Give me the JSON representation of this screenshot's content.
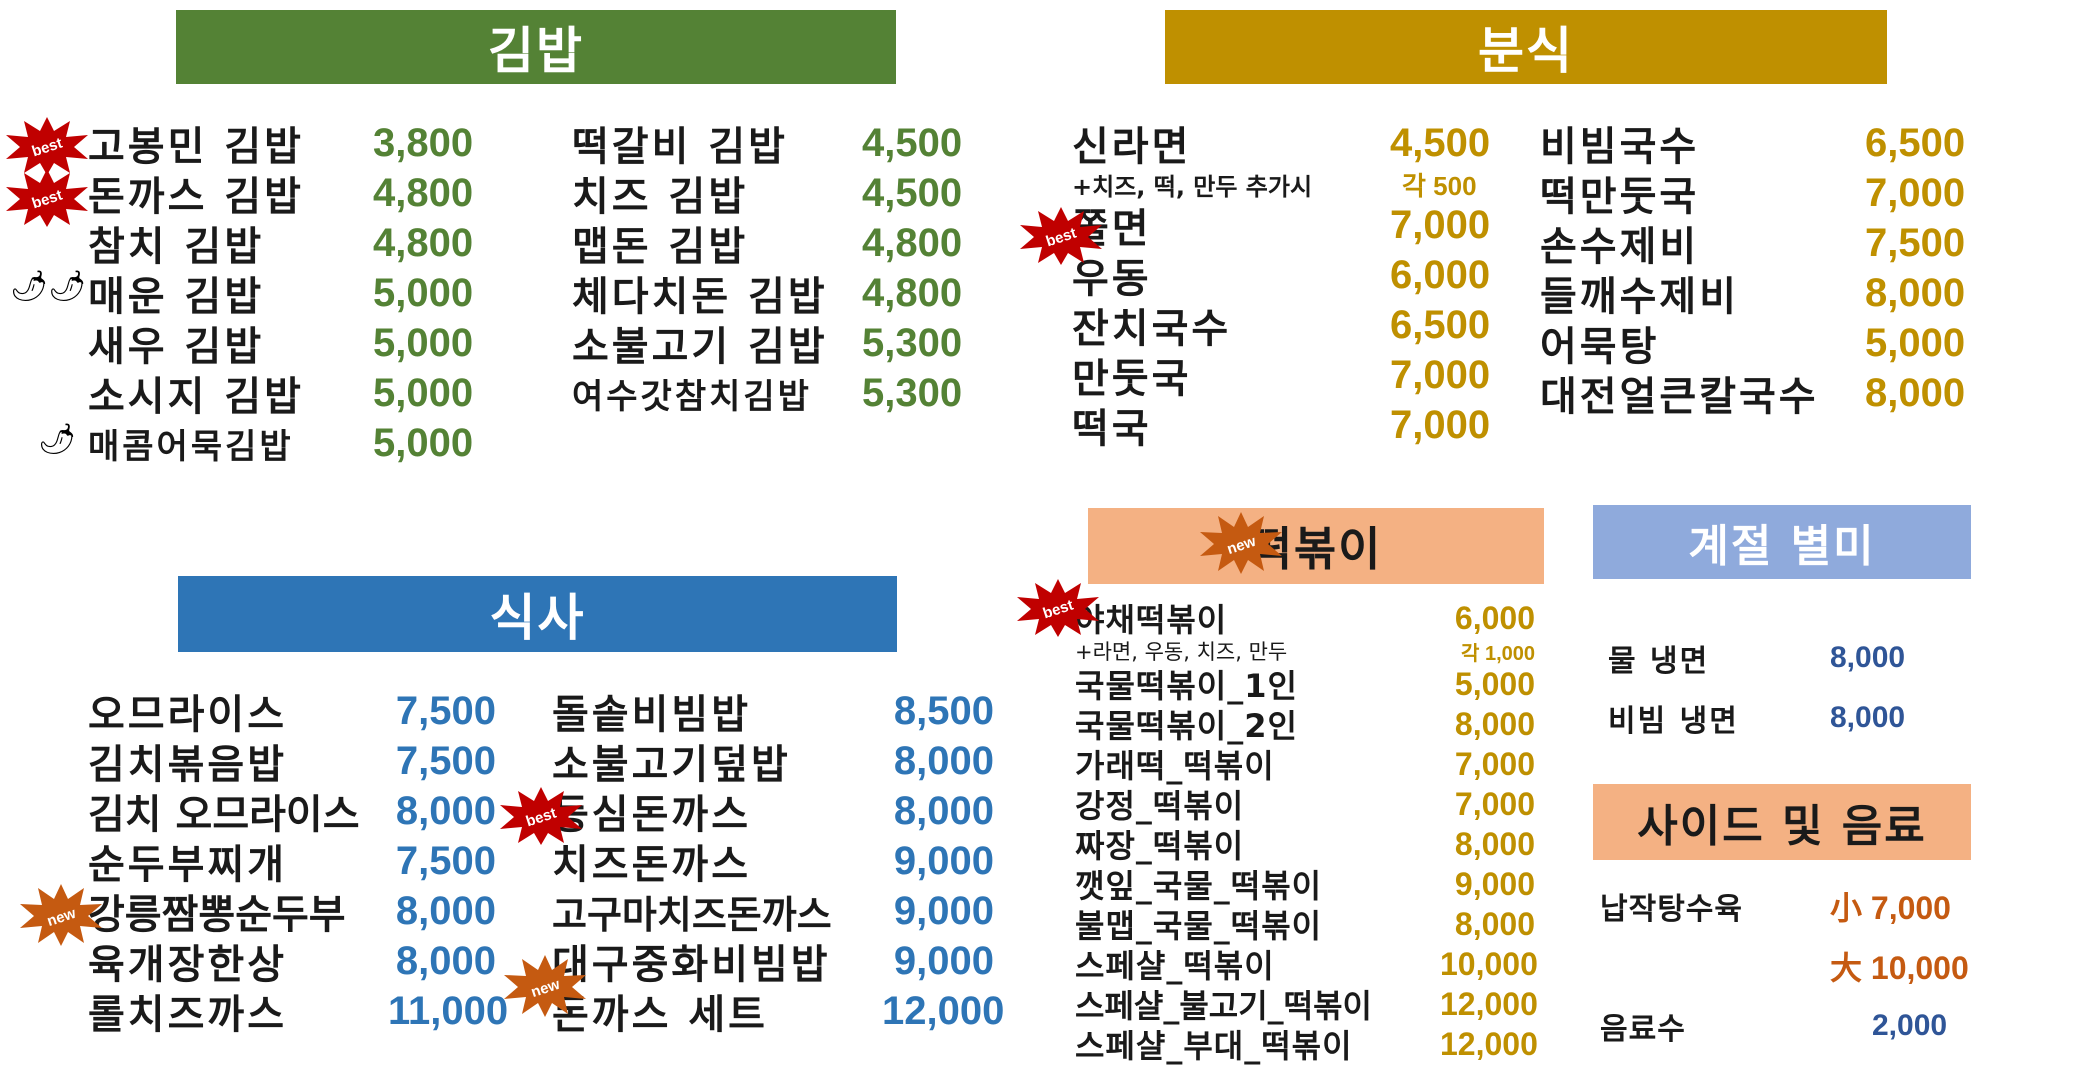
{
  "sections": {
    "gimbap": {
      "title": "김밥",
      "color": "#548235",
      "left": [
        {
          "name": "고봉민 김밥",
          "price": "3,800"
        },
        {
          "name": "돈까스 김밥",
          "price": "4,800"
        },
        {
          "name": "참치 김밥",
          "price": "4,800"
        },
        {
          "name": "매운 김밥",
          "price": "5,000"
        },
        {
          "name": "새우 김밥",
          "price": "5,000"
        },
        {
          "name": "소시지 김밥",
          "price": "5,000"
        },
        {
          "name": "매콤어묵김밥",
          "price": "5,000"
        }
      ],
      "right": [
        {
          "name": "떡갈비 김밥",
          "price": "4,500"
        },
        {
          "name": "치즈 김밥",
          "price": "4,500"
        },
        {
          "name": "맵돈 김밥",
          "price": "4,800"
        },
        {
          "name": "체다치돈 김밥",
          "price": "4,800"
        },
        {
          "name": "소불고기 김밥",
          "price": "5,300"
        },
        {
          "name": "여수갓참치김밥",
          "price": "5,300"
        }
      ]
    },
    "bunsik": {
      "title": "분식",
      "color": "#bf9000",
      "ramen": {
        "name": "신라면",
        "price": "4,500"
      },
      "ramen_addon": {
        "name": "+치즈, 떡, 만두 추가시",
        "price": "각 500"
      },
      "left": [
        {
          "name": "쫄면",
          "price": "7,000"
        },
        {
          "name": "우동",
          "price": "6,000"
        },
        {
          "name": "잔치국수",
          "price": "6,500"
        },
        {
          "name": "만둣국",
          "price": "7,000"
        },
        {
          "name": "떡국",
          "price": "7,000"
        }
      ],
      "right": [
        {
          "name": "비빔국수",
          "price": "6,500"
        },
        {
          "name": "떡만둣국",
          "price": "7,000"
        },
        {
          "name": "손수제비",
          "price": "7,500"
        },
        {
          "name": "들깨수제비",
          "price": "8,000"
        },
        {
          "name": "어묵탕",
          "price": "5,000"
        },
        {
          "name": "대전얼큰칼국수",
          "price": "8,000"
        }
      ]
    },
    "meal": {
      "title": "식사",
      "color": "#2e75b6",
      "left": [
        {
          "name": "오므라이스",
          "price": "7,500"
        },
        {
          "name": "김치볶음밥",
          "price": "7,500"
        },
        {
          "name": "김치 오므라이스",
          "price": "8,000"
        },
        {
          "name": "순두부찌개",
          "price": "7,500"
        },
        {
          "name": "강릉짬뽕순두부",
          "price": "8,000"
        },
        {
          "name": "육개장한상",
          "price": "8,000"
        },
        {
          "name": "롤치즈까스",
          "price": "11,000"
        }
      ],
      "right": [
        {
          "name": "돌솥비빔밥",
          "price": "8,500"
        },
        {
          "name": "소불고기덮밥",
          "price": "8,000"
        },
        {
          "name": "등심돈까스",
          "price": "8,000"
        },
        {
          "name": "치즈돈까스",
          "price": "9,000"
        },
        {
          "name": "고구마치즈돈까스",
          "price": "9,000"
        },
        {
          "name": "대구중화비빔밥",
          "price": "9,000"
        },
        {
          "name": "돈까스 세트",
          "price": "12,000"
        }
      ]
    },
    "tteokbokki": {
      "title": "떡볶이",
      "color": "#f4b183",
      "first": {
        "name": "야채떡볶이",
        "price": "6,000"
      },
      "addon": {
        "name": "+라면, 우동, 치즈, 만두",
        "price": "각 1,000"
      },
      "items": [
        {
          "name": "국물떡볶이_1인",
          "price": "5,000"
        },
        {
          "name": "국물떡볶이_2인",
          "price": "8,000"
        },
        {
          "name": "가래떡_떡볶이",
          "price": "7,000"
        },
        {
          "name": "강정_떡볶이",
          "price": "7,000"
        },
        {
          "name": "짜장_떡볶이",
          "price": "8,000"
        },
        {
          "name": "깻잎_국물_떡볶이",
          "price": "9,000"
        },
        {
          "name": "불맵_국물_떡볶이",
          "price": "8,000"
        },
        {
          "name": "스페샬_떡볶이",
          "price": "10,000"
        },
        {
          "name": "스페샬_불고기_떡볶이",
          "price": "12,000"
        },
        {
          "name": "스페샬_부대_떡볶이",
          "price": "12,000"
        }
      ]
    },
    "seasonal": {
      "title": "계절 별미",
      "color": "#8faadc",
      "items": [
        {
          "name": "물 냉면",
          "price": "8,000"
        },
        {
          "name": "비빔 냉면",
          "price": "8,000"
        }
      ]
    },
    "sides": {
      "title": "사이드 및 음료",
      "color": "#f4b183",
      "items": [
        {
          "name": "납작탕수육",
          "price": "小 7,000"
        },
        {
          "name": "",
          "price": "大 10,000"
        },
        {
          "name": "음료수",
          "price": "2,000"
        }
      ]
    }
  },
  "badges": {
    "best": "best",
    "new": "new"
  },
  "icons": {
    "chili": "chili-pepper-icon",
    "best_badge": "best-starburst-icon",
    "new_badge": "new-starburst-icon"
  },
  "colors": {
    "price_green": "#548235",
    "price_gold": "#bf9000",
    "price_blue": "#2e75b6",
    "price_orange": "#c55a11",
    "price_navy": "#2f5597",
    "badge_red": "#c00000",
    "badge_orange": "#c55a11"
  }
}
